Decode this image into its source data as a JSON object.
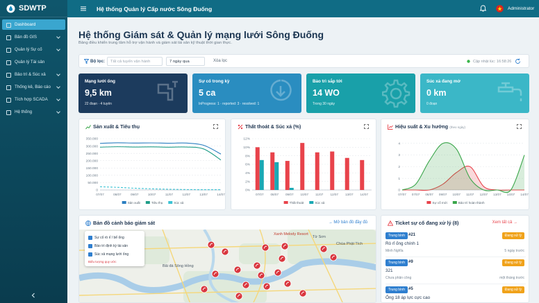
{
  "sidebar": {
    "brand": "SDWTP",
    "menu": [
      "Dashboard",
      "Bản đồ GIS",
      "Quản lý Sự cố",
      "Quản lý Tài sản",
      "Bảo trì & Súc xả",
      "Thống kê, Báo cáo",
      "Tích hợp SCADA",
      "Hệ thống"
    ]
  },
  "topbar": {
    "title": "Hệ thống Quản lý Cấp nước Sông Đuống",
    "user": "Administrator"
  },
  "header": {
    "title": "Hệ thống Giám sát & Quản lý mạng lưới Sông Đuống",
    "subtitle": "Bảng điều khiển trung tâm hỗ trợ vận hành và giám sát tài sản kỹ thuật thời gian thực."
  },
  "filter": {
    "label": "Bộ lọc:",
    "route_placeholder": "Tất cả tuyến vận hành",
    "period": "7 ngày qua",
    "clear": "Xóa lọc",
    "updated": "Cập nhật lúc: 16:58:26"
  },
  "kpis": [
    {
      "label": "Mạng lưới ống",
      "value": "9,5 km",
      "detail": "22 đoạn · 4 tuyến"
    },
    {
      "label": "Sự cố trong kỳ",
      "value": "5 ca",
      "detail": "InProgress: 1 · reported: 3 · resolved: 1"
    },
    {
      "label": "Bảo trì sắp tới",
      "value": "14 WO",
      "detail": "Trong 30 ngày"
    },
    {
      "label": "Súc xả đang mở",
      "value": "0 km",
      "detail": "0 đoạn"
    }
  ],
  "chart_data": [
    {
      "type": "line",
      "title": "Sản xuất & Tiêu thụ",
      "categories": [
        "07/07",
        "08/07",
        "09/07",
        "10/07",
        "11/07",
        "12/07",
        "13/07",
        "14/07"
      ],
      "series": [
        {
          "name": "Sản xuất",
          "color": "#2b7fc1",
          "values": [
            318000,
            322000,
            320000,
            321000,
            319000,
            320000,
            305000,
            245000
          ]
        },
        {
          "name": "Tiêu thụ",
          "color": "#1f9d88",
          "values": [
            292000,
            295000,
            293000,
            294000,
            292000,
            293000,
            280000,
            205000
          ]
        },
        {
          "name": "Súc xả",
          "color": "#3cc3d4",
          "dashed": true,
          "values": [
            22000,
            18000,
            12000,
            8000,
            5000,
            3000,
            2000,
            2000
          ]
        }
      ],
      "ylim": [
        0,
        350000
      ],
      "yticks": [
        0,
        {
          "value": 50000,
          "label": "50.000"
        },
        {
          "value": 100000,
          "label": "100.000"
        },
        {
          "value": 150000,
          "label": "150.000"
        },
        {
          "value": 200000,
          "label": "200.000"
        },
        {
          "value": 250000,
          "label": "250.000"
        },
        {
          "value": 300000,
          "label": "300.000"
        },
        {
          "value": 350000,
          "label": "350.000"
        }
      ],
      "grid": true,
      "legend": "bottom"
    },
    {
      "type": "bar",
      "title": "Thất thoát & Súc xả (%)",
      "categories": [
        "07/07",
        "08/07",
        "09/07",
        "10/07",
        "11/07",
        "12/07",
        "13/07",
        "14/07"
      ],
      "series": [
        {
          "name": "Thất thoát",
          "color": "#e8434b",
          "values": [
            10,
            8.8,
            6.8,
            11,
            8.8,
            9,
            7.5,
            7
          ]
        },
        {
          "name": "Súc xả",
          "color": "#1aa8b4",
          "values": [
            7,
            6.5,
            0.5,
            0,
            0,
            0,
            0,
            0
          ]
        }
      ],
      "ylim": [
        0,
        12
      ],
      "yticks": [
        {
          "value": 0,
          "label": "0%"
        },
        {
          "value": 2,
          "label": "2%"
        },
        {
          "value": 4,
          "label": "4%"
        },
        {
          "value": 6,
          "label": "6%"
        },
        {
          "value": 8,
          "label": "8%"
        },
        {
          "value": 10,
          "label": "10%"
        },
        {
          "value": 12,
          "label": "12%"
        }
      ],
      "grid": true,
      "legend": "bottom"
    },
    {
      "type": "area",
      "title": "Hiệu suất & Xu hướng",
      "subtitle": "(theo ngày)",
      "categories": [
        "07/07",
        "07/07",
        "08/07",
        "09/07",
        "10/07",
        "11/07",
        "12/07",
        "13/07",
        "14/07",
        "14/07"
      ],
      "series": [
        {
          "name": "Sự cố mới",
          "color": "#e8434b",
          "values": [
            0,
            0,
            0,
            0.5,
            1.5,
            2,
            0.3,
            0,
            0,
            0
          ]
        },
        {
          "name": "Bảo trì hoàn thành",
          "color": "#3aa64a",
          "values": [
            0,
            0.5,
            2.5,
            4,
            3.5,
            1,
            0,
            0,
            0,
            3
          ]
        }
      ],
      "ylim": [
        0,
        4.4
      ],
      "yticks": [
        0,
        1,
        2,
        3,
        4
      ],
      "grid": true,
      "legend": "bottom"
    }
  ],
  "map": {
    "title": "Bản đồ cảnh báo giám sát",
    "link": "→ Mở bản đồ đầy đủ",
    "legend": [
      "Sự cố rò rỉ / bể ống",
      "Bảo trì định kỳ tài sản",
      "Súc xả mạng lưới ống"
    ],
    "legend_note": "Biểu tượng quy ước",
    "places": [
      "Xanh Melody Resort",
      "Từ Sơn",
      "Chùa Phật Tích",
      "Bãi đá Sông Hồng"
    ]
  },
  "tickets": {
    "title": "Ticket sự cố đang xử lý (8)",
    "link": "Xem tất cả →",
    "items": [
      {
        "priority": "Trung bình",
        "id": "#21",
        "status": "Đang xử lý",
        "title": "Rò rỉ ống chính 1",
        "assignee": "Minh Nghĩa",
        "time": "5 ngày trước"
      },
      {
        "priority": "Trung bình",
        "id": "#9",
        "status": "Đang xử lý",
        "title": "321",
        "assignee": "Chưa phân công",
        "time": "một tháng trước"
      },
      {
        "priority": "Trung bình",
        "id": "#5",
        "status": "Đang xử lý",
        "title": "Ống 18 áp lực cực cao",
        "assignee": "",
        "time": ""
      }
    ]
  }
}
